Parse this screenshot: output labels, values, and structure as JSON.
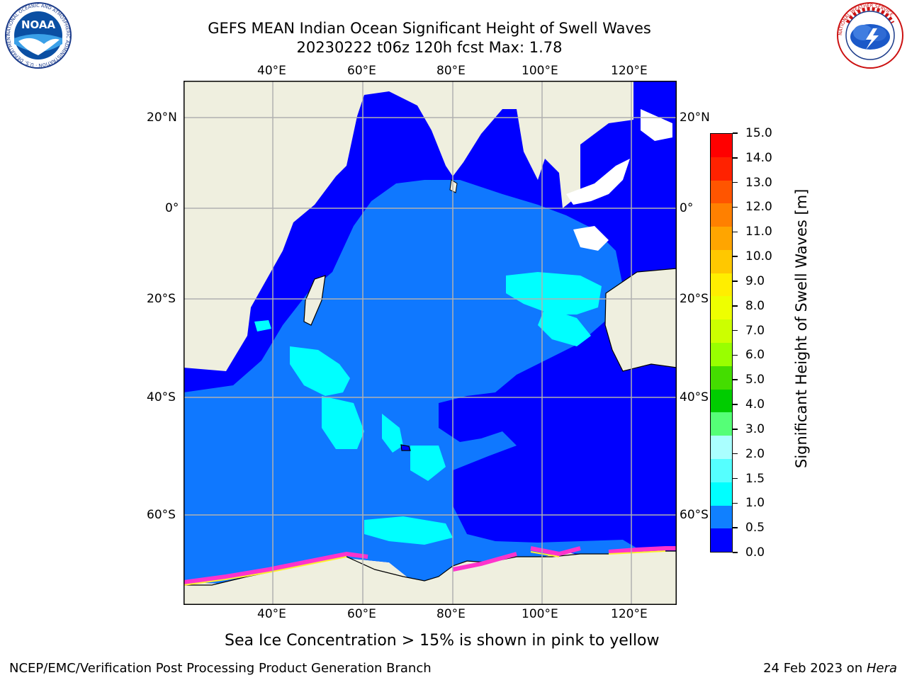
{
  "title": {
    "line1": "GEFS MEAN Indian Ocean Significant Height of Swell Waves",
    "line2": "20230222 t06z 120h fcst   Max: 1.78"
  },
  "logos": {
    "noaa": {
      "text": "NOAA",
      "ring_text": "NATIONAL OCEANIC AND ATMOSPHERIC ADMINISTRATION · U.S. DEPARTMENT OF COMMERCE"
    },
    "nws": {
      "ring_text": "NATIONAL WEATHER SERVICE"
    }
  },
  "map": {
    "lon_labels": [
      "40°E",
      "60°E",
      "80°E",
      "100°E",
      "120°E"
    ],
    "lat_labels_left": [
      "20°N",
      "0°",
      "20°S",
      "40°S",
      "60°S"
    ],
    "lat_labels_right": [
      "20°N",
      "0°",
      "20°S",
      "40°S",
      "60°S"
    ],
    "grid": true,
    "colors": {
      "land": "#efefdf",
      "ocean_0_0.5": "#0000ff",
      "ocean_0.5_1.0": "#0f78ff",
      "ocean_1.0_1.5": "#00ffff",
      "sea_ice": "#ff00ff",
      "no_data": "#ffffff"
    }
  },
  "colorbar": {
    "label": "Significant Height of Swell Waves [m]",
    "ticks": [
      "15.0",
      "14.0",
      "13.0",
      "12.0",
      "11.0",
      "10.0",
      "9.0",
      "8.0",
      "7.0",
      "6.0",
      "5.0",
      "4.0",
      "3.0",
      "2.0",
      "1.5",
      "1.0",
      "0.5",
      "0.0"
    ],
    "bands": [
      "#ff0000",
      "#ff2200",
      "#ff5500",
      "#ff8000",
      "#ffa500",
      "#ffc800",
      "#ffee00",
      "#eeff00",
      "#ccff00",
      "#99ff00",
      "#44dd00",
      "#00cc00",
      "#55ff77",
      "#aaffff",
      "#55ffff",
      "#00ffff",
      "#1080ff",
      "#0000ff"
    ]
  },
  "note": "Sea Ice Concentration > 15% is shown in pink to yellow",
  "footer": {
    "left": "NCEP/EMC/Verification Post Processing Product Generation Branch",
    "date": "24 Feb 2023 on ",
    "host": "Hera"
  }
}
